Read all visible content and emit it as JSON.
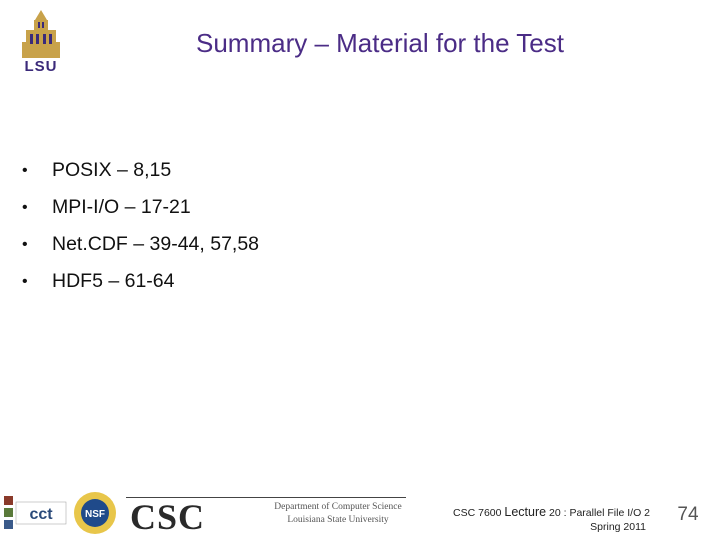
{
  "slide": {
    "title": "Summary – Material for the Test",
    "bullets": [
      {
        "marker": "•",
        "text": "POSIX – 8,15"
      },
      {
        "marker": "•",
        "text": "MPI-I/O – 17-21"
      },
      {
        "marker": "•",
        "text": "Net.CDF – 39-44, 57,58"
      },
      {
        "marker": "•",
        "text": "HDF5 – 61-64"
      }
    ]
  },
  "logos": {
    "lsu": "LSU",
    "cct": "cct",
    "nsf": "NSF",
    "csc": "CSC",
    "dept_line1": "Department of Computer Science",
    "dept_line2": "Louisiana State University"
  },
  "footer": {
    "course_prefix": "CSC 7600 ",
    "lecture_word": "Lecture",
    "course_suffix": " 20 : Parallel File I/O 2",
    "term": "Spring 2011",
    "page_number": "74"
  },
  "colors": {
    "title": "#4b2c86",
    "lsu_purple": "#3b2a7a",
    "lsu_gold": "#c8a24a"
  }
}
